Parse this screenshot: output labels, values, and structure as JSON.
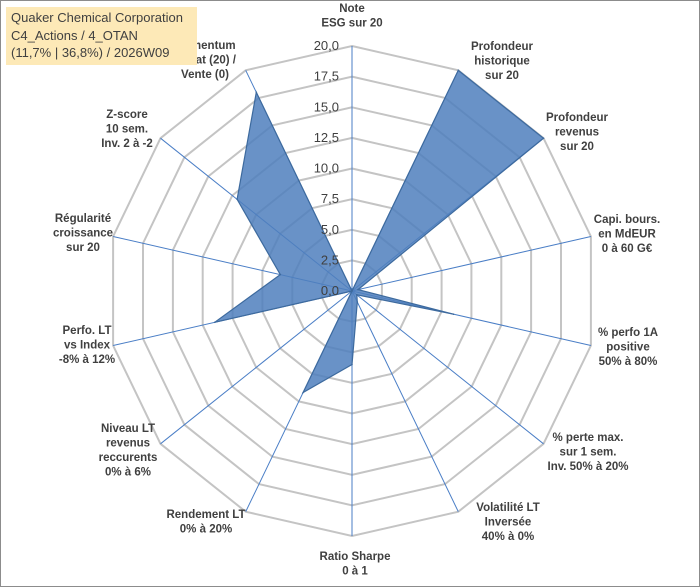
{
  "title": {
    "line1": "Quaker Chemical Corporation",
    "line2": "C4_Actions / 4_OTAN",
    "line3": "(11,7% | 36,8%) / 2026W09"
  },
  "chart_data": {
    "type": "radar",
    "rmin": 0,
    "rmax": 20,
    "ticks": [
      "0,0",
      "2,5",
      "5,0",
      "7,5",
      "10,0",
      "12,5",
      "15,0",
      "17,5",
      "20,0"
    ],
    "grid": true,
    "axes": [
      [
        "Note",
        "ESG sur 20"
      ],
      [
        "Profondeur",
        "historique",
        "sur 20"
      ],
      [
        "Profondeur",
        "revenus",
        "sur 20"
      ],
      [
        "Capi. bours.",
        "en MdEUR",
        "0 à 60 G€"
      ],
      [
        "% perfo 1A",
        "positive",
        "50% à 80%"
      ],
      [
        "% perte max.",
        "sur 1 sem.",
        "Inv. 50% à 20%"
      ],
      [
        "Volatilité LT",
        "Inversée",
        "40% à 0%"
      ],
      [
        "Ratio Sharpe",
        "0 à 1"
      ],
      [
        "Rendement LT",
        "0% à 20%"
      ],
      [
        "Niveau LT",
        "revenus",
        "reccurents",
        "0% à 6%"
      ],
      [
        "Perfo. LT",
        "vs Index",
        "-8% à 12%"
      ],
      [
        "Régularité",
        "croissance",
        "sur 20"
      ],
      [
        "Z-score",
        "10 sem.",
        "Inv. 2 à -2"
      ],
      [
        "Momentum",
        "Achat (20) /",
        "Vente (0)"
      ]
    ],
    "series": [
      {
        "name": "Quaker Chemical Corporation",
        "values": [
          0,
          20,
          20,
          0.5,
          8.5,
          0.5,
          1,
          6,
          9.2,
          0,
          11.5,
          6,
          12,
          18
        ],
        "color": "#4f7fbd"
      }
    ]
  }
}
